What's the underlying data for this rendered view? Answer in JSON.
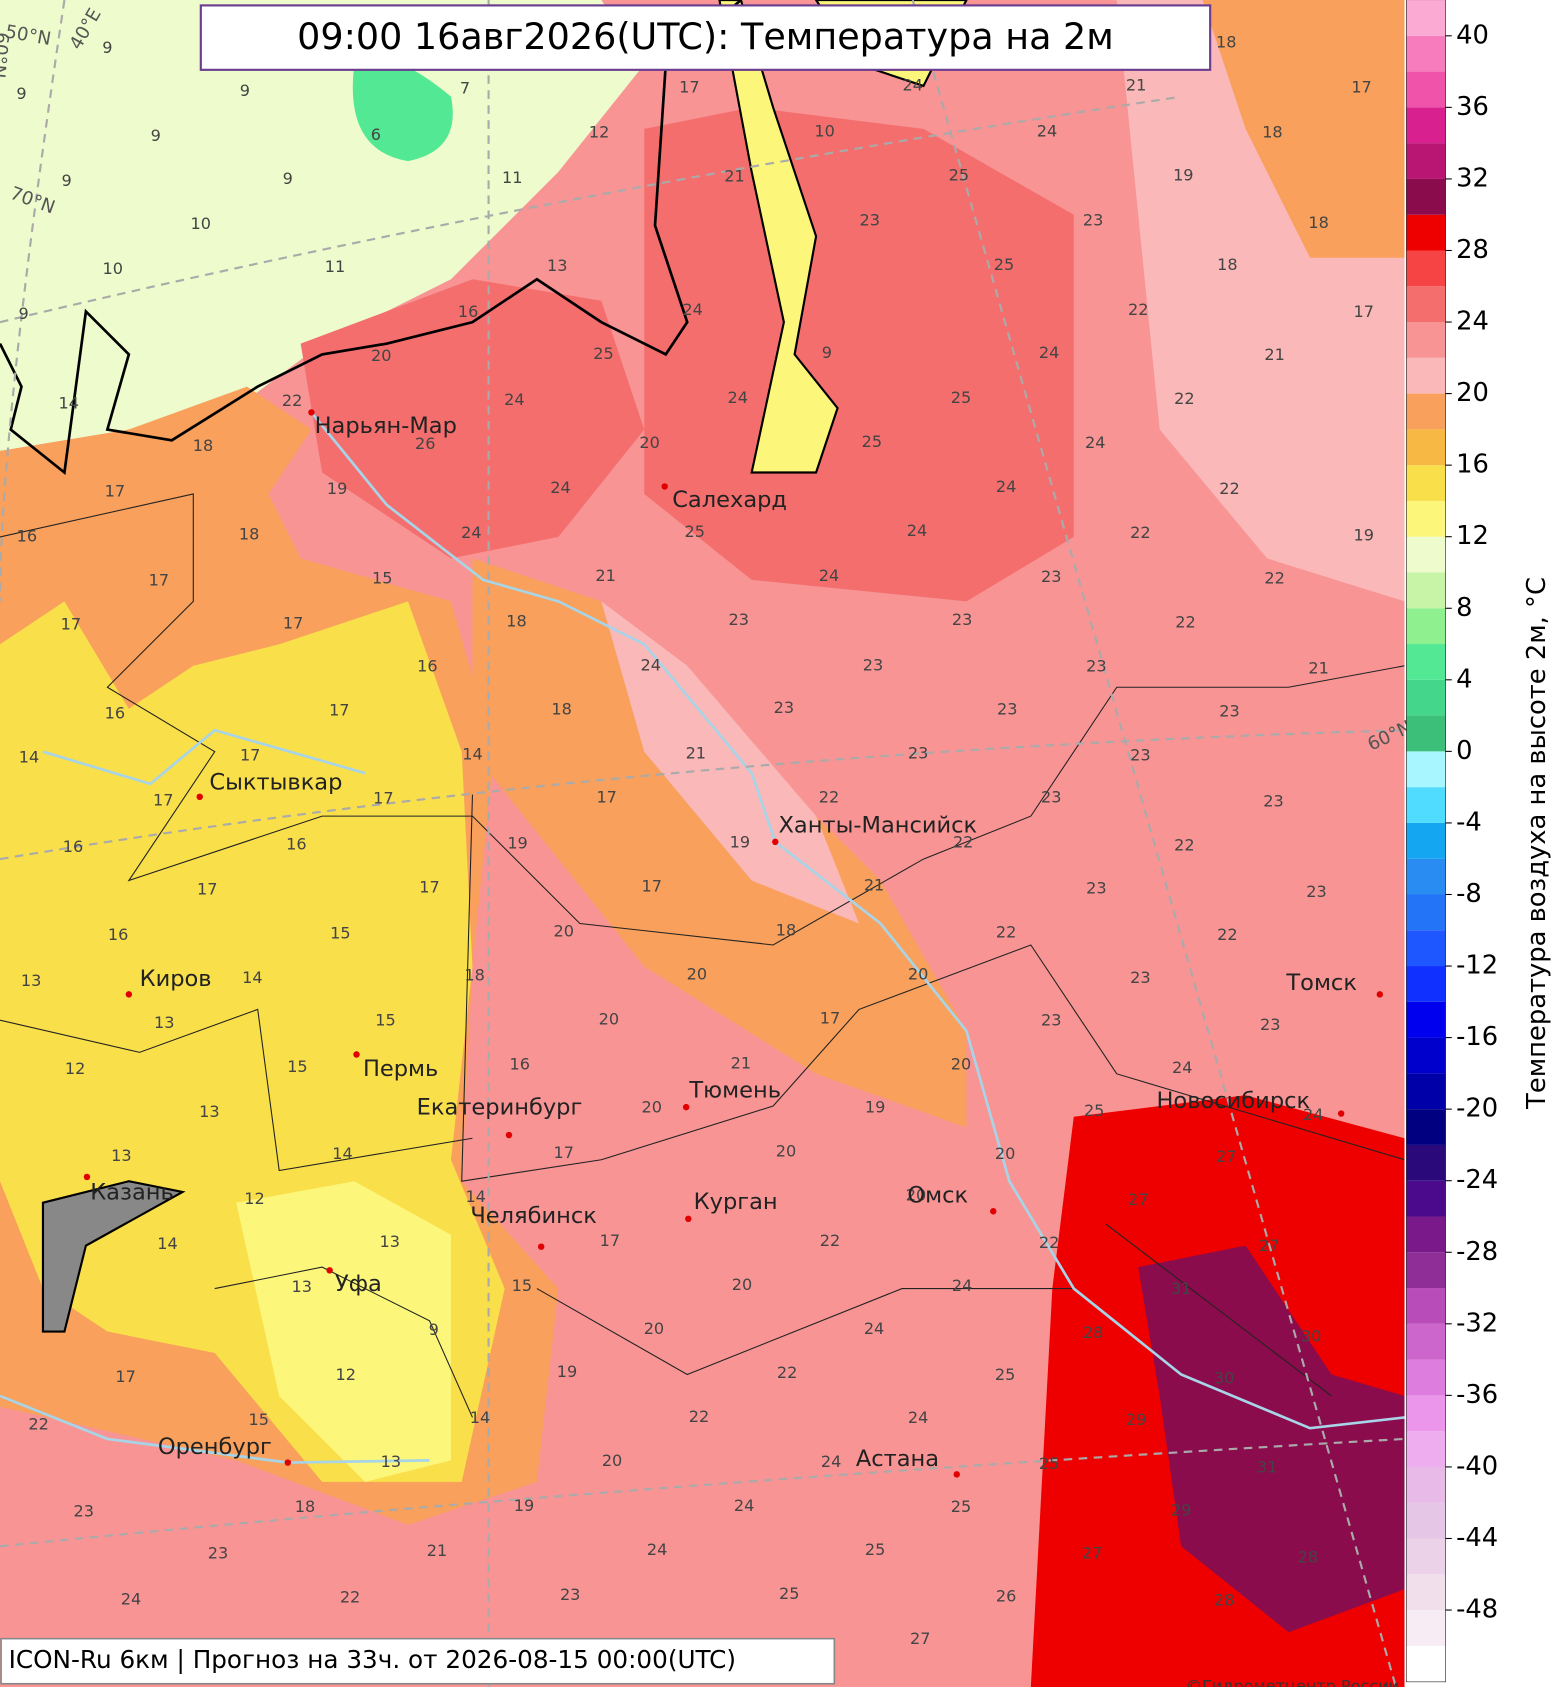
{
  "title": "09:00 16авг2026(UTC): Температура на 2м",
  "footer": "ICON-Ru 6км | Прогноз на  33ч. от 2026-08-15 00:00(UTC)",
  "copyright": "©Гидрометцентр России",
  "colorbar": {
    "label": "Температура воздуха на высоте 2м, °C",
    "lim": [
      -52,
      42
    ],
    "ticks": [
      40,
      36,
      32,
      28,
      24,
      20,
      16,
      12,
      8,
      4,
      0,
      -4,
      -8,
      -12,
      -16,
      -20,
      -24,
      -28,
      -32,
      -36,
      -40,
      -44,
      -48
    ],
    "colors": [
      "#ffffff",
      "#f7ecf3",
      "#f1dfec",
      "#ecd2e8",
      "#e6c6e6",
      "#e8bae8",
      "#eeadee",
      "#eb95eb",
      "#dd7ddd",
      "#cc66cc",
      "#b84cb8",
      "#8e2e96",
      "#7a1a8a",
      "#4b0a8c",
      "#2a0a7a",
      "#000080",
      "#0000a8",
      "#0000cc",
      "#0000ee",
      "#1030ff",
      "#1e56ff",
      "#2474f8",
      "#288cf2",
      "#14a6f0",
      "#50dcff",
      "#a8f6ff",
      "#3cbf78",
      "#44d68a",
      "#52e894",
      "#8ef08e",
      "#c8f4a8",
      "#eefbcc",
      "#fcf77a",
      "#f9df4a",
      "#f7b944",
      "#f8a05c",
      "#fbb8b8",
      "#f89494",
      "#f46e6e",
      "#f64444",
      "#ee0000",
      "#8a0c4c",
      "#b81672",
      "#d8208e",
      "#f054aa",
      "#f67cbe",
      "#fbaad4"
    ]
  },
  "graticule": [
    "70°N",
    "60°N",
    "50°N",
    "40°E",
    "60°N"
  ],
  "cities": [
    "Нарьян-Мар",
    "Салехард",
    "Сыктывкар",
    "Ханты-Мансийск",
    "Киров",
    "Пермь",
    "Екатеринбург",
    "Тюмень",
    "Томск",
    "Новосибирск",
    "Казань",
    "Челябинск",
    "Курган",
    "Омск",
    "Уфа",
    "Оренбург",
    "Астана"
  ],
  "temperatures": [
    9,
    9,
    9,
    7,
    9,
    6,
    12,
    17,
    24,
    21,
    18,
    17,
    18,
    9,
    9,
    11,
    21,
    10,
    24,
    25,
    19,
    10,
    23,
    23,
    18,
    10,
    11,
    13,
    25,
    18,
    9,
    16,
    24,
    22,
    17,
    20,
    25,
    9,
    24,
    21,
    14,
    22,
    24,
    24,
    25,
    22,
    18,
    26,
    20,
    25,
    24,
    17,
    19,
    24,
    24,
    22,
    16,
    18,
    24,
    25,
    24,
    22,
    19,
    17,
    15,
    21,
    24,
    23,
    22,
    17,
    17,
    18,
    23,
    23,
    22,
    16,
    24,
    23,
    23,
    21,
    16,
    17,
    18,
    23,
    23,
    23,
    14,
    17,
    14,
    21,
    23,
    23,
    17,
    17,
    17,
    22,
    23,
    23,
    16,
    16,
    19,
    19,
    22,
    22,
    17,
    17,
    17,
    21,
    23,
    23,
    16,
    15,
    20,
    18,
    22,
    22,
    13,
    14,
    18,
    20,
    20,
    23,
    13,
    15,
    20,
    17,
    23,
    23,
    12,
    15,
    16,
    21,
    20,
    24,
    13,
    20,
    19,
    25,
    24,
    13,
    14,
    17,
    20,
    20,
    27,
    12,
    14,
    20,
    27,
    14,
    13,
    17,
    22,
    22,
    27,
    13,
    15,
    20,
    24,
    31,
    9,
    20,
    24,
    28,
    30,
    17,
    12,
    19,
    22,
    25,
    30,
    15,
    14,
    22,
    24,
    29,
    22,
    13,
    20,
    24,
    25,
    31,
    23,
    18,
    19,
    24,
    25,
    29,
    23,
    21,
    24,
    25,
    27,
    28,
    24,
    22,
    23,
    25,
    26,
    28,
    27
  ]
}
